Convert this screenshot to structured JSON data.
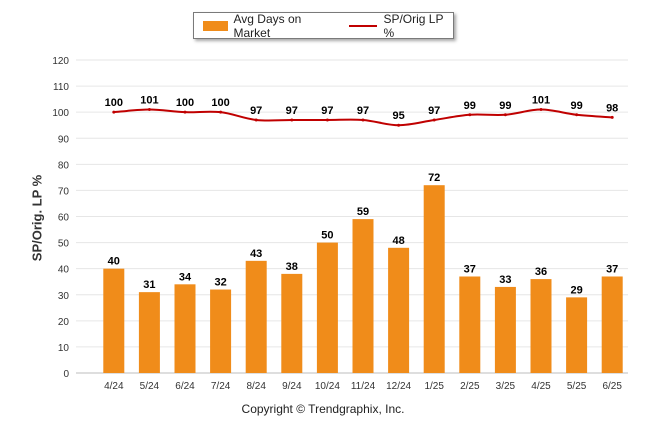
{
  "legend": {
    "bar_label": "Avg Days on Market",
    "line_label": "SP/Orig LP %"
  },
  "footer": {
    "copyright": "Copyright © Trendgraphix, Inc."
  },
  "colors": {
    "bar": "#f08c1a",
    "line": "#c00000",
    "grid": "#e6e6e6"
  },
  "chart_data": {
    "type": "bar",
    "categories": [
      "4/24",
      "5/24",
      "6/24",
      "7/24",
      "8/24",
      "9/24",
      "10/24",
      "11/24",
      "12/24",
      "1/25",
      "2/25",
      "3/25",
      "4/25",
      "5/25",
      "6/25"
    ],
    "series": [
      {
        "name": "Avg Days on Market",
        "type": "bar",
        "values": [
          40,
          31,
          34,
          32,
          43,
          38,
          50,
          59,
          48,
          72,
          37,
          33,
          36,
          29,
          37
        ]
      },
      {
        "name": "SP/Orig LP %",
        "type": "line",
        "values": [
          100,
          101,
          100,
          100,
          97,
          97,
          97,
          97,
          95,
          97,
          99,
          99,
          101,
          99,
          98
        ]
      }
    ],
    "ylabel": "SP/Orig. LP %",
    "xlabel": "",
    "ylim": [
      0,
      120
    ],
    "yticks": [
      0,
      10,
      20,
      30,
      40,
      50,
      60,
      70,
      80,
      90,
      100,
      110,
      120
    ],
    "grid": true,
    "legend_position": "top-center"
  }
}
